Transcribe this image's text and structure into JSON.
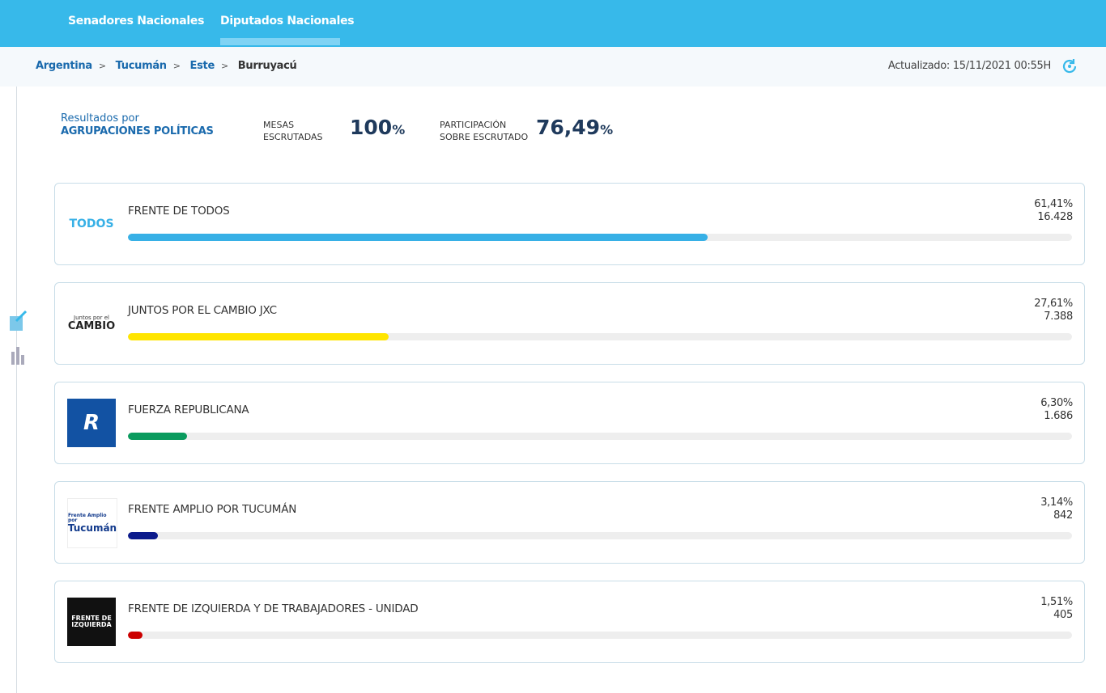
{
  "nav": {
    "tabs": [
      "Senadores Nacionales",
      "Diputados Nacionales"
    ],
    "active_tab": 1
  },
  "breadcrumb": {
    "items": [
      "Argentina",
      "Tucumán",
      "Este",
      "Burruyacú"
    ],
    "separator": ">"
  },
  "updated": "Actualizado: 15/11/2021 00:55H",
  "summary": {
    "results_by": "Resultados por",
    "results_group": "AGRUPACIONES POLÍTICAS",
    "mesas_label_1": "MESAS",
    "mesas_label_2": "ESCRUTADAS",
    "mesas_value": "100",
    "mesas_unit": "%",
    "part_label_1": "PARTICIPACIÓN",
    "part_label_2": "SOBRE ESCRUTADO",
    "part_value": "76,49",
    "part_unit": "%"
  },
  "parties": [
    {
      "name": "FRENTE DE TODOS",
      "percent": {
        "value": 61.41,
        "label": "61,41%"
      },
      "votes": "16.428",
      "color": "#37b0e6",
      "logo": [
        "TODOS"
      ]
    },
    {
      "name": "JUNTOS POR EL CAMBIO JXC",
      "percent": {
        "value": 27.61,
        "label": "27,61%"
      },
      "votes": "7.388",
      "color": "#ffe500",
      "logo": [
        "Juntos por el",
        "CAMBIO"
      ]
    },
    {
      "name": "FUERZA REPUBLICANA",
      "percent": {
        "value": 6.3,
        "label": "6,30%"
      },
      "votes": "1.686",
      "color": "#0a9b5e",
      "logo": [
        "R"
      ]
    },
    {
      "name": "FRENTE AMPLIO POR TUCUMÁN",
      "percent": {
        "value": 3.14,
        "label": "3,14%"
      },
      "votes": "842",
      "color": "#0c1b8c",
      "logo": [
        "Frente Amplio por",
        "Tucumán"
      ]
    },
    {
      "name": "FRENTE DE IZQUIERDA Y DE TRABAJADORES - UNIDAD",
      "percent": {
        "value": 1.51,
        "label": "1,51%"
      },
      "votes": "405",
      "color": "#cc0000",
      "logo": [
        "FRENTE DE",
        "IZQUIERDA"
      ]
    }
  ]
}
